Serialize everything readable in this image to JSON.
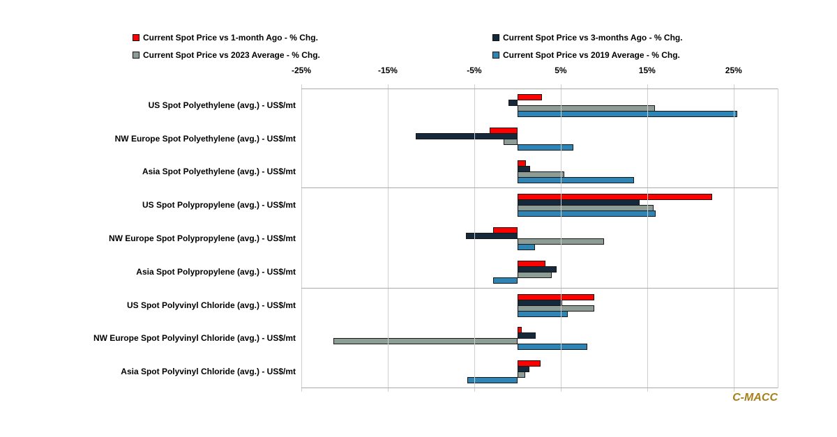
{
  "brand": {
    "logo_text": "C-MACC",
    "color": "#A6801C"
  },
  "chart_data": {
    "type": "bar",
    "orientation": "horizontal",
    "grid": true,
    "legend_position": "top",
    "x_axis": {
      "unit": "%",
      "min": -25,
      "max": 30.1,
      "tick_values": [
        -25,
        -15,
        -5,
        5,
        15,
        25
      ],
      "ticks": [
        "-25%",
        "-15%",
        "-5%",
        "5%",
        "15%",
        "25%"
      ]
    },
    "categories": [
      "US Spot Polyethylene (avg.) - US$/mt",
      "NW Europe Spot Polyethylene (avg.) - US$/mt",
      "Asia Spot Polyethylene (avg.) - US$/mt",
      "US Spot Polypropylene (avg.) - US$/mt",
      "NW Europe Spot Polypropylene (avg.) - US$/mt",
      "Asia Spot Polypropylene (avg.) - US$/mt",
      "US Spot Polyvinyl Chloride (avg.) - US$/mt",
      "NW Europe Spot Polyvinyl Chloride (avg.)  - US$/mt",
      "Asia Spot Polyvinyl Chloride (avg.) - US$/mt"
    ],
    "group_separators_after": [
      2,
      5
    ],
    "series": [
      {
        "name": "Current Spot Price vs 1-month Ago - % Chg.",
        "color": "#FE0000",
        "values": [
          2.8,
          -3.2,
          1.0,
          22.5,
          -2.8,
          3.2,
          8.9,
          0.5,
          2.7
        ]
      },
      {
        "name": "Current Spot Price vs 3-months Ago - % Chg.",
        "color": "#15293B",
        "values": [
          -1.0,
          -11.8,
          1.5,
          14.1,
          -6.0,
          4.5,
          5.2,
          2.1,
          1.4
        ]
      },
      {
        "name": "Current Spot Price vs 2023 Average - % Chg.",
        "color": "#8E9C96",
        "values": [
          15.9,
          -1.6,
          5.4,
          15.7,
          10.0,
          4.0,
          8.9,
          -21.3,
          0.9
        ]
      },
      {
        "name": "Current Spot Price vs 2019 Average - % Chg.",
        "color": "#2D84B5",
        "values": [
          25.4,
          6.5,
          13.5,
          16.0,
          2.0,
          -2.8,
          5.8,
          8.1,
          -5.8
        ]
      }
    ],
    "legend_order": [
      0,
      1,
      2,
      3
    ]
  }
}
